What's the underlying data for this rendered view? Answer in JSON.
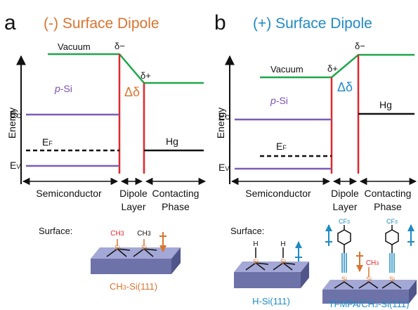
{
  "panel_a": {
    "letter": "a",
    "title": "(-) Surface Dipole",
    "vacuum": "Vacuum",
    "delta_left": "δ−",
    "delta_right": "δ+",
    "delta": "Δδ",
    "material": [
      "p",
      "-Si"
    ],
    "ec": [
      "E",
      "C"
    ],
    "ef": [
      "E",
      "F"
    ],
    "ev": [
      "E",
      "V"
    ],
    "contact": "Hg",
    "axis": "Energy",
    "regions": [
      "Semiconductor",
      "Dipole",
      "Layer",
      "Contacting",
      "Phase"
    ],
    "surface": "Surface:",
    "chem": [
      "CH",
      "3",
      "CH",
      "3",
      "Si",
      "Si"
    ],
    "caption": [
      "CH",
      "3",
      "-Si(111)"
    ]
  },
  "panel_b": {
    "letter": "b",
    "title": "(+) Surface Dipole",
    "vacuum": "Vacuum",
    "delta_left": "δ+",
    "delta_right": "δ−",
    "delta": "Δδ",
    "material": [
      "p",
      "-Si"
    ],
    "ec": [
      "E",
      "C"
    ],
    "ef": [
      "E",
      "F"
    ],
    "ev": [
      "E",
      "V"
    ],
    "contact": "Hg",
    "axis": "Energy",
    "regions": [
      "Semiconductor",
      "Dipole",
      "Layer",
      "Contacting",
      "Phase"
    ],
    "surface": "Surface:",
    "chem": [
      "H",
      "H",
      "Si",
      "Si",
      "CF",
      "3",
      "CF",
      "3",
      "CH",
      "3",
      "Si",
      "Si",
      "Si"
    ],
    "caption1": "H-Si(111)",
    "caption2": [
      "TFMPA/CH",
      "3",
      "-Si(111)"
    ]
  }
}
